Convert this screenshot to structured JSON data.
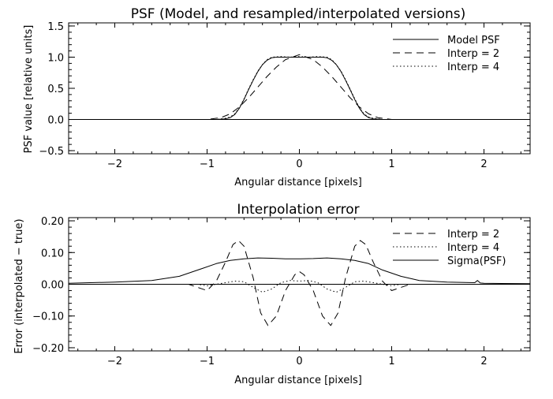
{
  "chart_data": [
    {
      "type": "line",
      "title": "PSF (Model, and resampled/interpolated versions)",
      "xlabel": "Angular distance [pixels]",
      "ylabel": "PSF value [relative units]",
      "xlim": [
        -2.5,
        2.5
      ],
      "ylim": [
        -0.55,
        1.55
      ],
      "xticks": [
        -2,
        -1,
        0,
        1,
        2
      ],
      "xtick_labels": [
        "−2",
        "−1",
        "0",
        "1",
        "2"
      ],
      "yticks": [
        -0.5,
        0.0,
        0.5,
        1.0,
        1.5
      ],
      "ytick_labels": [
        "−0.5",
        "0.0",
        "0.5",
        "1.0",
        "1.5"
      ],
      "grid": false,
      "legend_position": "top-right",
      "series": [
        {
          "name": "Model PSF",
          "style": "solid",
          "x": [
            -2.5,
            -1.0,
            -0.9,
            -0.8,
            -0.75,
            -0.7,
            -0.65,
            -0.6,
            -0.55,
            -0.5,
            -0.45,
            -0.4,
            -0.35,
            -0.3,
            -0.25,
            -0.2,
            -0.1,
            0.0,
            0.1,
            0.2,
            0.25,
            0.3,
            0.35,
            0.4,
            0.45,
            0.5,
            0.55,
            0.6,
            0.65,
            0.7,
            0.75,
            0.8,
            0.9,
            1.0,
            2.5
          ],
          "y": [
            0.0,
            0.0,
            0.0,
            0.01,
            0.03,
            0.08,
            0.18,
            0.32,
            0.48,
            0.63,
            0.77,
            0.88,
            0.95,
            0.99,
            1.0,
            1.0,
            1.0,
            1.0,
            1.0,
            1.0,
            1.0,
            0.99,
            0.95,
            0.88,
            0.77,
            0.63,
            0.48,
            0.32,
            0.18,
            0.08,
            0.03,
            0.01,
            0.0,
            0.0,
            0.0
          ]
        },
        {
          "name": "Interp = 2",
          "style": "dashed",
          "x": [
            -2.5,
            -1.0,
            -0.95,
            -0.85,
            -0.75,
            -0.65,
            -0.55,
            -0.45,
            -0.35,
            -0.25,
            -0.15,
            0.0,
            0.15,
            0.25,
            0.35,
            0.45,
            0.55,
            0.65,
            0.75,
            0.85,
            0.95,
            1.0,
            2.5
          ],
          "y": [
            0.0,
            0.0,
            0.01,
            0.03,
            0.09,
            0.2,
            0.35,
            0.52,
            0.69,
            0.84,
            0.96,
            1.04,
            0.96,
            0.84,
            0.69,
            0.52,
            0.35,
            0.2,
            0.09,
            0.03,
            0.01,
            0.0,
            0.0
          ]
        },
        {
          "name": "Interp = 4",
          "style": "dotted",
          "x": [
            -2.5,
            -1.0,
            -0.9,
            -0.8,
            -0.75,
            -0.7,
            -0.65,
            -0.6,
            -0.55,
            -0.5,
            -0.45,
            -0.4,
            -0.35,
            -0.3,
            -0.2,
            -0.1,
            0.0,
            0.1,
            0.2,
            0.3,
            0.35,
            0.4,
            0.45,
            0.5,
            0.55,
            0.6,
            0.65,
            0.7,
            0.75,
            0.8,
            0.9,
            1.0,
            2.5
          ],
          "y": [
            0.0,
            0.0,
            0.0,
            0.02,
            0.04,
            0.09,
            0.19,
            0.33,
            0.49,
            0.64,
            0.78,
            0.88,
            0.96,
            1.0,
            1.01,
            1.0,
            1.01,
            1.0,
            1.01,
            1.0,
            0.96,
            0.88,
            0.78,
            0.64,
            0.49,
            0.33,
            0.19,
            0.09,
            0.04,
            0.02,
            0.0,
            0.0,
            0.0
          ]
        }
      ]
    },
    {
      "type": "line",
      "title": "Interpolation error",
      "xlabel": "Angular distance [pixels]",
      "ylabel": "Error (interpolated − true)",
      "xlim": [
        -2.5,
        2.5
      ],
      "ylim": [
        -0.21,
        0.21
      ],
      "xticks": [
        -2,
        -1,
        0,
        1,
        2
      ],
      "xtick_labels": [
        "−2",
        "−1",
        "0",
        "1",
        "2"
      ],
      "yticks": [
        -0.2,
        -0.1,
        0.0,
        0.1,
        0.2
      ],
      "ytick_labels": [
        "−0.20",
        "−0.10",
        "0.00",
        "0.10",
        "0.20"
      ],
      "grid": false,
      "legend_position": "top-right",
      "series": [
        {
          "name": "Interp = 2",
          "style": "dashed",
          "x": [
            -2.5,
            -1.2,
            -1.1,
            -1.0,
            -0.9,
            -0.8,
            -0.72,
            -0.66,
            -0.6,
            -0.5,
            -0.42,
            -0.34,
            -0.25,
            -0.15,
            -0.05,
            0.0,
            0.05,
            0.15,
            0.25,
            0.34,
            0.42,
            0.5,
            0.6,
            0.66,
            0.72,
            0.8,
            0.9,
            1.0,
            1.1,
            1.2,
            2.5
          ],
          "y": [
            0.0,
            0.0,
            -0.01,
            -0.02,
            0.01,
            0.07,
            0.125,
            0.138,
            0.12,
            0.02,
            -0.09,
            -0.13,
            -0.1,
            -0.02,
            0.03,
            0.04,
            0.03,
            -0.02,
            -0.1,
            -0.13,
            -0.09,
            0.02,
            0.12,
            0.138,
            0.125,
            0.07,
            0.01,
            -0.02,
            -0.01,
            0.0,
            0.0
          ]
        },
        {
          "name": "Interp = 4",
          "style": "dotted",
          "x": [
            -2.5,
            -1.1,
            -1.0,
            -0.9,
            -0.8,
            -0.7,
            -0.6,
            -0.5,
            -0.4,
            -0.3,
            -0.2,
            -0.1,
            0.0,
            0.1,
            0.2,
            0.3,
            0.4,
            0.5,
            0.6,
            0.7,
            0.8,
            0.9,
            1.0,
            1.1,
            2.5
          ],
          "y": [
            0.0,
            0.0,
            -0.005,
            0.0,
            0.005,
            0.01,
            0.008,
            -0.01,
            -0.025,
            -0.015,
            0.005,
            0.012,
            0.01,
            0.012,
            0.005,
            -0.015,
            -0.025,
            -0.01,
            0.008,
            0.01,
            0.005,
            0.0,
            -0.005,
            0.0,
            0.0
          ]
        },
        {
          "name": "Sigma(PSF)",
          "style": "solid",
          "x": [
            -2.5,
            -2.0,
            -1.6,
            -1.3,
            -1.1,
            -0.9,
            -0.75,
            -0.6,
            -0.45,
            -0.3,
            -0.15,
            0.0,
            0.15,
            0.3,
            0.45,
            0.6,
            0.75,
            0.9,
            1.1,
            1.3,
            1.6,
            1.9,
            1.93,
            1.96,
            2.0,
            2.5
          ],
          "y": [
            0.003,
            0.007,
            0.012,
            0.025,
            0.045,
            0.065,
            0.075,
            0.08,
            0.083,
            0.082,
            0.08,
            0.08,
            0.081,
            0.083,
            0.08,
            0.075,
            0.065,
            0.045,
            0.025,
            0.012,
            0.007,
            0.005,
            0.012,
            0.004,
            0.003,
            0.002
          ]
        }
      ]
    }
  ]
}
